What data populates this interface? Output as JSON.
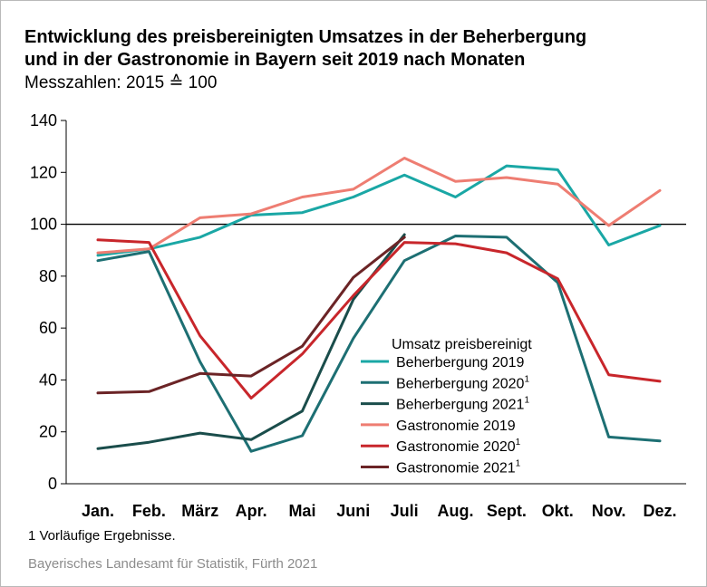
{
  "title_line1": "Entwicklung des preisbereinigten Umsatzes in der Beherbergung",
  "title_line2": "und in der Gastronomie in Bayern seit 2019 nach Monaten",
  "subtitle": "Messzahlen: 2015 ≙ 100",
  "footnote": "1  Vorläufige Ergebnisse.",
  "source": "Bayerisches Landesamt für Statistik, Fürth 2021",
  "colors": {
    "beherbergung_2019": "#1aa7a5",
    "beherbergung_2020": "#1d6f73",
    "beherbergung_2021": "#1a4d4b",
    "gastronomie_2019": "#ee7d72",
    "gastronomie_2020": "#c8262b",
    "gastronomie_2021": "#6b2426",
    "reference_line": "#000000",
    "axis": "#000000"
  },
  "chart_data": {
    "type": "line",
    "title": "Entwicklung des preisbereinigten Umsatzes in der Beherbergung und in der Gastronomie in Bayern seit 2019 nach Monaten",
    "subtitle": "Messzahlen: 2015 ≙ 100",
    "categories": [
      "Jan.",
      "Feb.",
      "März",
      "Apr.",
      "Mai",
      "Juni",
      "Juli",
      "Aug.",
      "Sept.",
      "Okt.",
      "Nov.",
      "Dez."
    ],
    "xlabel": "",
    "ylabel": "",
    "ylim": [
      0,
      140
    ],
    "yticks": [
      0,
      20,
      40,
      60,
      80,
      100,
      120,
      140
    ],
    "reference_line": 100,
    "grid": false,
    "legend_title": "Umsatz preisbereinigt",
    "legend_position": "center-right",
    "series": [
      {
        "name": "Beherbergung 2019",
        "footnote_mark": "",
        "color_key": "beherbergung_2019",
        "values": [
          88.0,
          90.5,
          95.0,
          103.5,
          104.5,
          110.5,
          119.0,
          110.5,
          122.5,
          121.0,
          92.0,
          99.5
        ]
      },
      {
        "name": "Beherbergung 2020",
        "footnote_mark": "1",
        "color_key": "beherbergung_2020",
        "values": [
          86.0,
          89.5,
          47.0,
          12.5,
          18.5,
          56.0,
          86.0,
          95.5,
          95.0,
          77.5,
          18.0,
          16.5
        ]
      },
      {
        "name": "Beherbergung 2021",
        "footnote_mark": "1",
        "color_key": "beherbergung_2021",
        "values": [
          13.5,
          16.0,
          19.5,
          17.0,
          28.0,
          71.0,
          96.0,
          null,
          null,
          null,
          null,
          null
        ]
      },
      {
        "name": "Gastronomie 2019",
        "footnote_mark": "",
        "color_key": "gastronomie_2019",
        "values": [
          89.0,
          90.5,
          102.5,
          104.0,
          110.5,
          113.5,
          125.5,
          116.5,
          118.0,
          115.5,
          99.5,
          113.0
        ]
      },
      {
        "name": "Gastronomie 2020",
        "footnote_mark": "1",
        "color_key": "gastronomie_2020",
        "values": [
          94.0,
          93.0,
          57.0,
          33.0,
          50.0,
          72.5,
          93.0,
          92.5,
          89.0,
          79.0,
          42.0,
          39.5
        ]
      },
      {
        "name": "Gastronomie 2021",
        "footnote_mark": "1",
        "color_key": "gastronomie_2021",
        "values": [
          35.0,
          35.5,
          42.5,
          41.5,
          53.0,
          79.5,
          95.0,
          null,
          null,
          null,
          null,
          null
        ]
      }
    ]
  }
}
